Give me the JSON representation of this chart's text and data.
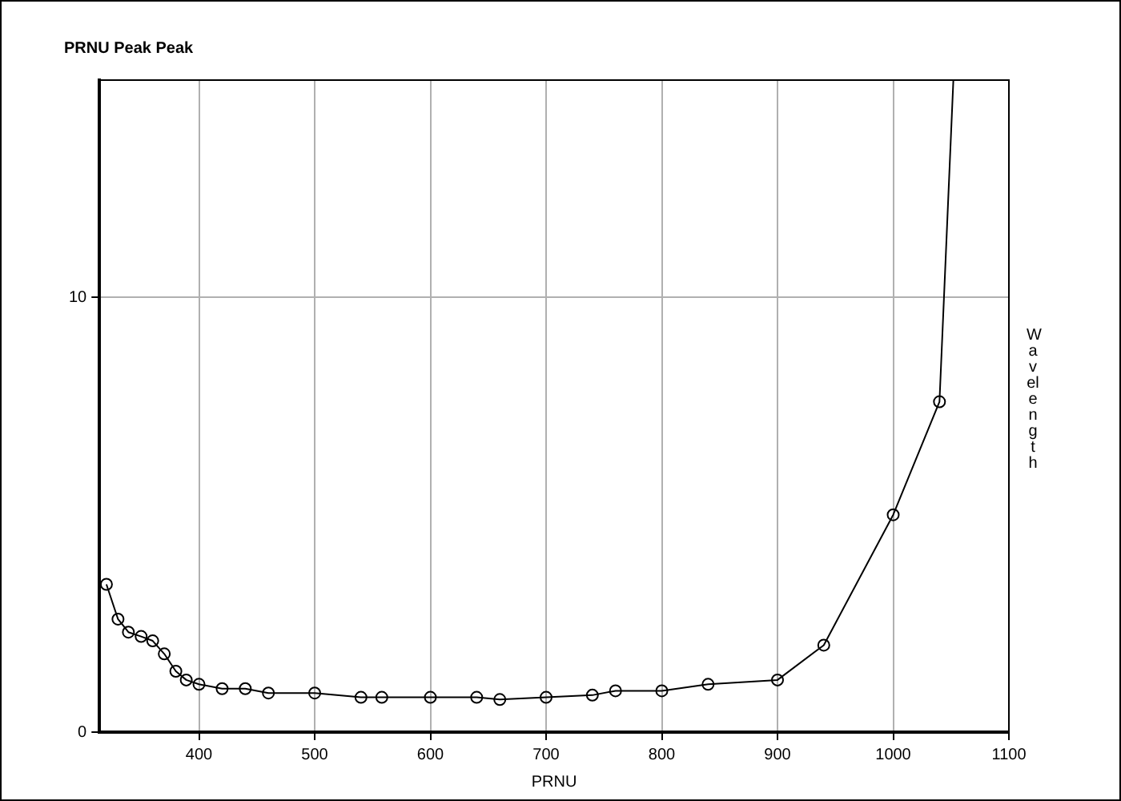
{
  "chart_data": {
    "type": "line",
    "title": "PRNU Peak Peak",
    "xlabel": "PRNU",
    "ylabel": "Wavelength",
    "x": [
      320,
      330,
      339,
      350,
      360,
      370,
      380,
      389,
      400,
      420,
      440,
      460,
      500,
      540,
      558,
      600,
      640,
      660,
      700,
      740,
      760,
      800,
      840,
      900,
      940,
      1000,
      1040,
      1052
    ],
    "series": [
      {
        "color": "#000000",
        "values": [
          3.4,
          2.6,
          2.3,
          2.2,
          2.1,
          1.8,
          1.4,
          1.2,
          1.1,
          1.0,
          1.0,
          0.9,
          0.9,
          0.8,
          0.8,
          0.8,
          0.8,
          0.75,
          0.8,
          0.85,
          0.95,
          0.95,
          1.1,
          1.2,
          2.0,
          5.0,
          7.6,
          15
        ]
      }
    ],
    "xlim": [
      314,
      1100
    ],
    "xticks": [
      400,
      500,
      600,
      700,
      800,
      900,
      1000,
      1100
    ],
    "ylim": [
      0,
      15
    ],
    "yticks": [
      0,
      10
    ],
    "grid": true,
    "marker": "circle",
    "line_style": "solid"
  }
}
